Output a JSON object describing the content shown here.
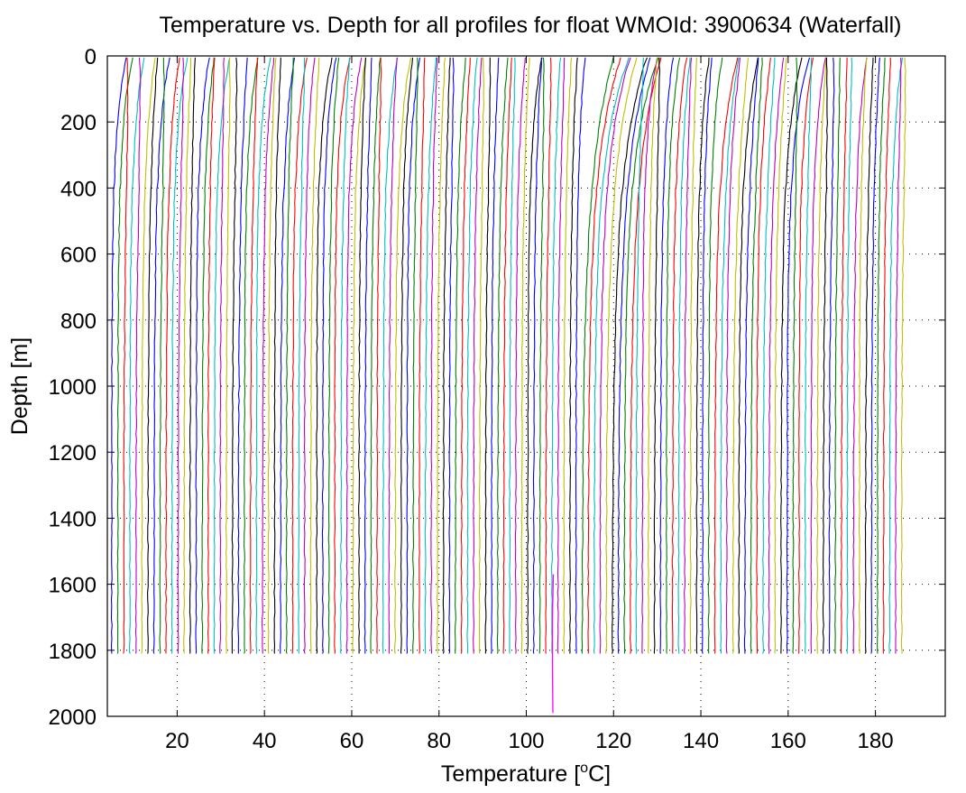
{
  "chart_data": {
    "type": "line",
    "title": "Temperature vs. Depth for all profiles for float WMOId: 3900634 (Waterfall)",
    "xlabel_pre": "Temperature [",
    "xlabel_sup": "o",
    "xlabel_post": "C]",
    "ylabel": "Depth [m]",
    "xlim": [
      4,
      196
    ],
    "ylim": [
      2000,
      0
    ],
    "y_reversed": true,
    "grid": true,
    "x_ticks": [
      20,
      40,
      60,
      80,
      100,
      120,
      140,
      160,
      180
    ],
    "y_ticks": [
      0,
      200,
      400,
      600,
      800,
      1000,
      1200,
      1400,
      1600,
      1800,
      2000
    ],
    "series_colors": [
      "#0000ff",
      "#008000",
      "#ff0000",
      "#00bfbf",
      "#bf00bf",
      "#bfbf00",
      "#000000"
    ],
    "waterfall": {
      "profile_count": 132,
      "first_deep_temperature": 5.0,
      "last_deep_temperature": 186.0,
      "offset_per_profile": 1.4,
      "profile_max_depth": 1810
    },
    "outlier_profile": {
      "color": "#ff00ff",
      "x": [
        106.2,
        106.0,
        106.0,
        106.1
      ],
      "y": [
        1570,
        1700,
        1850,
        1990
      ]
    },
    "colors": {
      "axis": "#000000",
      "grid": "#000000",
      "background": "#ffffff"
    }
  }
}
